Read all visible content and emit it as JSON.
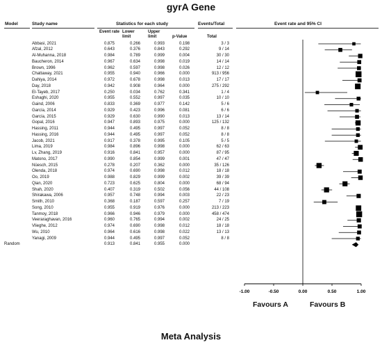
{
  "title": "gyrA Gene",
  "subtitle": "Meta Analysis",
  "headers": {
    "model": "Model",
    "study_name": "Study name",
    "stats_group": "Statistics for each study",
    "events_group": "Events/Total",
    "plot_group": "Event rate and 95% CI",
    "event_rate": "Event rate",
    "lower_limit": "Lower limit",
    "upper_limit": "Upper limit",
    "p_value": "p-Value",
    "total": "Total"
  },
  "random_label": "Random",
  "favours": {
    "left": "Favours A",
    "right": "Favours B"
  },
  "chart_data": {
    "type": "forest",
    "title": "gyrA Gene",
    "subtitle": "Meta Analysis",
    "xlim": [
      -1.0,
      1.0
    ],
    "xticks": [
      "-1.00",
      "-0.50",
      "0.00",
      "0.50",
      "1.00"
    ],
    "xtick_values": [
      -1.0,
      -0.5,
      0.0,
      0.5,
      1.0
    ],
    "studies": [
      {
        "name": "Abbasi, 2021",
        "rate": "0.875",
        "lower": "0.266",
        "upper": "0.993",
        "p": "0.198",
        "events": "3 / 3"
      },
      {
        "name": "Afzal, 2012",
        "rate": "0.643",
        "lower": "0.376",
        "upper": "0.843",
        "p": "0.292",
        "events": "9 / 14"
      },
      {
        "name": "Al-Muhanna, 2018",
        "rate": "0.984",
        "lower": "0.789",
        "upper": "0.999",
        "p": "0.004",
        "events": "30 / 30"
      },
      {
        "name": "Baucheron, 2014",
        "rate": "0.967",
        "lower": "0.634",
        "upper": "0.998",
        "p": "0.019",
        "events": "14 / 14"
      },
      {
        "name": "Brown, 1996",
        "rate": "0.962",
        "lower": "0.597",
        "upper": "0.998",
        "p": "0.026",
        "events": "12 / 12"
      },
      {
        "name": "Chattaway, 2021",
        "rate": "0.955",
        "lower": "0.940",
        "upper": "0.966",
        "p": "0.000",
        "events": "913 / 956"
      },
      {
        "name": "Dahiya, 2014",
        "rate": "0.972",
        "lower": "0.678",
        "upper": "0.998",
        "p": "0.013",
        "events": "17 / 17"
      },
      {
        "name": "Day, 2018",
        "rate": "0.942",
        "lower": "0.908",
        "upper": "0.964",
        "p": "0.000",
        "events": "275 / 292"
      },
      {
        "name": "El-Tayeb, 2017",
        "rate": "0.250",
        "lower": "0.034",
        "upper": "0.762",
        "p": "0.341",
        "events": "1 / 4"
      },
      {
        "name": "Eshaghi, 2020",
        "rate": "0.955",
        "lower": "0.552",
        "upper": "0.997",
        "p": "0.035",
        "events": "10 / 10"
      },
      {
        "name": "Gaind, 2006",
        "rate": "0.833",
        "lower": "0.369",
        "upper": "0.977",
        "p": "0.142",
        "events": "5 / 6"
      },
      {
        "name": "García, 2014",
        "rate": "0.929",
        "lower": "0.423",
        "upper": "0.996",
        "p": "0.081",
        "events": "6 / 6"
      },
      {
        "name": "García, 2015",
        "rate": "0.929",
        "lower": "0.630",
        "upper": "0.990",
        "p": "0.013",
        "events": "13 / 14"
      },
      {
        "name": "Gopal, 2016",
        "rate": "0.947",
        "lower": "0.893",
        "upper": "0.975",
        "p": "0.000",
        "events": "125 / 132"
      },
      {
        "name": "Hassing, 2011",
        "rate": "0.944",
        "lower": "0.495",
        "upper": "0.997",
        "p": "0.052",
        "events": "8 / 8"
      },
      {
        "name": "Hassing, 2016",
        "rate": "0.944",
        "lower": "0.495",
        "upper": "0.997",
        "p": "0.052",
        "events": "8 / 8"
      },
      {
        "name": "Jacob, 2021",
        "rate": "0.917",
        "lower": "0.378",
        "upper": "0.995",
        "p": "0.105",
        "events": "5 / 5"
      },
      {
        "name": "Lima, 2019",
        "rate": "0.984",
        "lower": "0.896",
        "upper": "0.998",
        "p": "0.000",
        "events": "62 / 63"
      },
      {
        "name": "Lv, Zhang, 2019",
        "rate": "0.916",
        "lower": "0.841",
        "upper": "0.957",
        "p": "0.000",
        "events": "87 / 95"
      },
      {
        "name": "Matono, 2017",
        "rate": "0.990",
        "lower": "0.854",
        "upper": "0.999",
        "p": "0.001",
        "events": "47 / 47"
      },
      {
        "name": "Nüesch, 2015",
        "rate": "0.278",
        "lower": "0.207",
        "upper": "0.362",
        "p": "0.000",
        "events": "35 / 126"
      },
      {
        "name": "Olenda, 2018",
        "rate": "0.974",
        "lower": "0.690",
        "upper": "0.998",
        "p": "0.012",
        "events": "18 / 18"
      },
      {
        "name": "Oo, 2019",
        "rate": "0.988",
        "lower": "0.829",
        "upper": "0.999",
        "p": "0.002",
        "events": "39 / 39"
      },
      {
        "name": "Qian, 2020",
        "rate": "0.723",
        "lower": "0.625",
        "upper": "0.804",
        "p": "0.000",
        "events": "68 / 94"
      },
      {
        "name": "Shah, 2020",
        "rate": "0.407",
        "lower": "0.319",
        "upper": "0.502",
        "p": "0.056",
        "events": "44 / 108"
      },
      {
        "name": "Shirakawa, 2006",
        "rate": "0.957",
        "lower": "0.748",
        "upper": "0.994",
        "p": "0.003",
        "events": "22 / 23"
      },
      {
        "name": "Smith, 2010",
        "rate": "0.368",
        "lower": "0.187",
        "upper": "0.597",
        "p": "0.257",
        "events": "7 / 19"
      },
      {
        "name": "Song, 2010",
        "rate": "0.955",
        "lower": "0.919",
        "upper": "0.976",
        "p": "0.000",
        "events": "213 / 223"
      },
      {
        "name": "Tanmoy, 2018",
        "rate": "0.966",
        "lower": "0.946",
        "upper": "0.979",
        "p": "0.000",
        "events": "458 / 474"
      },
      {
        "name": "Veeraraghavan, 2016",
        "rate": "0.960",
        "lower": "0.765",
        "upper": "0.994",
        "p": "0.002",
        "events": "24 / 25"
      },
      {
        "name": "Vlieghe, 2012",
        "rate": "0.974",
        "lower": "0.690",
        "upper": "0.998",
        "p": "0.012",
        "events": "18 / 18"
      },
      {
        "name": "Wu, 2010",
        "rate": "0.964",
        "lower": "0.616",
        "upper": "0.998",
        "p": "0.022",
        "events": "13 / 13"
      },
      {
        "name": "Yanagi, 2009",
        "rate": "0.944",
        "lower": "0.495",
        "upper": "0.997",
        "p": "0.052",
        "events": "8 / 8"
      }
    ],
    "pooled": {
      "model": "Random",
      "rate": "0.913",
      "lower": "0.841",
      "upper": "0.955",
      "p": "0.000"
    }
  }
}
